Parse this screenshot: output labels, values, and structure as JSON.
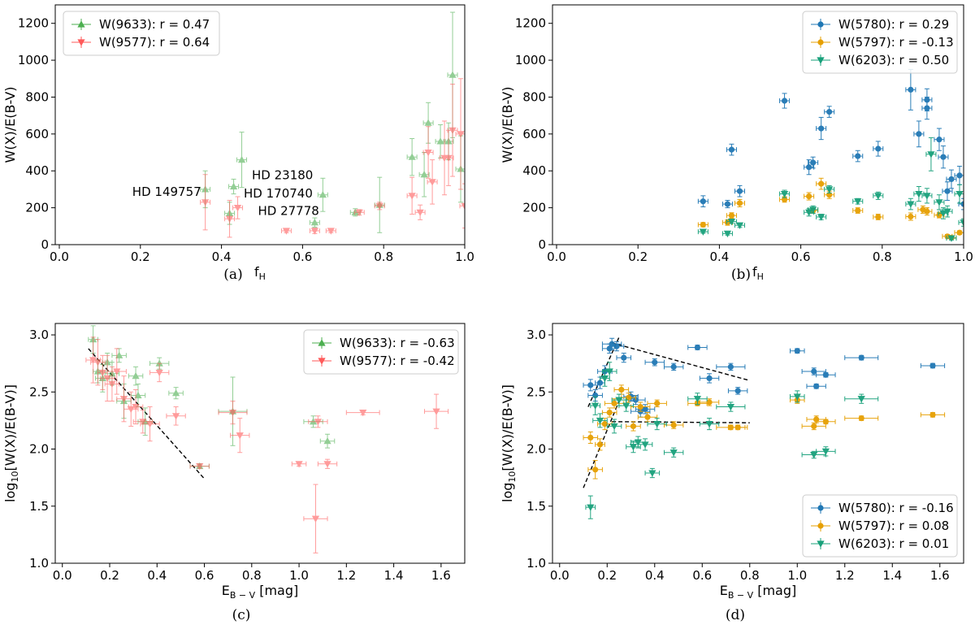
{
  "colors": {
    "green": "#4caf50",
    "red": "#ff5a5a",
    "blue": "#1f77b4",
    "orange": "#e69f00",
    "teal": "#17a07a",
    "axis": "#000000",
    "fitline": "#000000"
  },
  "chart_data": [
    {
      "id": "a",
      "type": "scatter",
      "caption": "(a)",
      "xlabel_main": "f",
      "xlabel_sub": "H",
      "ylabel": "W(X)/E(B-V)",
      "xlim": [
        -0.01,
        1.0
      ],
      "ylim": [
        0,
        1300
      ],
      "xticks": [
        0.0,
        0.2,
        0.4,
        0.6,
        0.8,
        1.0
      ],
      "yticks": [
        0,
        200,
        400,
        600,
        800,
        1000,
        1200
      ],
      "legend_pos": "top-left",
      "annotations": [
        {
          "text": "HD 149757",
          "x": 0.18,
          "y": 265
        },
        {
          "text": "HD 23180",
          "x": 0.475,
          "y": 355
        },
        {
          "text": "HD 170740",
          "x": 0.455,
          "y": 255
        },
        {
          "text": "HD 27778",
          "x": 0.49,
          "y": 160
        }
      ],
      "series": [
        {
          "name": "W(9633): r = 0.47",
          "color_key": "green",
          "marker": "triangle-up",
          "x": [
            0.36,
            0.42,
            0.43,
            0.45,
            0.63,
            0.65,
            0.73,
            0.79,
            0.87,
            0.9,
            0.91,
            0.94,
            0.96,
            0.97,
            0.99
          ],
          "y": [
            300,
            170,
            315,
            460,
            120,
            270,
            175,
            215,
            475,
            380,
            660,
            560,
            560,
            920,
            410
          ],
          "yerr": [
            100,
            60,
            40,
            150,
            25,
            90,
            20,
            150,
            100,
            120,
            110,
            90,
            100,
            340,
            180
          ]
        },
        {
          "name": "W(9577): r = 0.64",
          "color_key": "red",
          "marker": "triangle-down",
          "x": [
            0.36,
            0.42,
            0.44,
            0.56,
            0.63,
            0.67,
            0.74,
            0.79,
            0.87,
            0.89,
            0.91,
            0.92,
            0.95,
            0.96,
            0.97,
            0.99,
            1.0
          ],
          "y": [
            230,
            140,
            200,
            75,
            75,
            75,
            175,
            210,
            265,
            175,
            500,
            340,
            470,
            470,
            620,
            600,
            210
          ],
          "yerr": [
            150,
            100,
            60,
            10,
            15,
            10,
            15,
            20,
            100,
            40,
            140,
            120,
            200,
            150,
            250,
            300,
            120
          ]
        }
      ]
    },
    {
      "id": "b",
      "type": "scatter",
      "caption": "(b)",
      "xlabel_main": "f",
      "xlabel_sub": "H",
      "ylabel": "W(X)/E(B-V)",
      "xlim": [
        -0.01,
        1.0
      ],
      "ylim": [
        0,
        1300
      ],
      "xticks": [
        0.0,
        0.2,
        0.4,
        0.6,
        0.8,
        1.0
      ],
      "yticks": [
        0,
        200,
        400,
        600,
        800,
        1000,
        1200
      ],
      "legend_pos": "top-right",
      "annotations": [],
      "series": [
        {
          "name": "W(5780): r = 0.29",
          "color_key": "blue",
          "marker": "circle",
          "x": [
            0.36,
            0.42,
            0.43,
            0.45,
            0.56,
            0.62,
            0.63,
            0.65,
            0.67,
            0.74,
            0.79,
            0.87,
            0.89,
            0.91,
            0.91,
            0.94,
            0.95,
            0.96,
            0.97,
            0.99,
            1.0
          ],
          "y": [
            235,
            220,
            515,
            290,
            780,
            420,
            445,
            630,
            720,
            480,
            520,
            840,
            600,
            785,
            740,
            570,
            475,
            290,
            355,
            375,
            220
          ],
          "yerr": [
            30,
            20,
            30,
            30,
            40,
            40,
            30,
            60,
            30,
            30,
            40,
            110,
            70,
            60,
            60,
            60,
            60,
            50,
            50,
            50,
            30
          ]
        },
        {
          "name": "W(5797): r = -0.13",
          "color_key": "orange",
          "marker": "circle",
          "x": [
            0.36,
            0.42,
            0.43,
            0.45,
            0.56,
            0.62,
            0.63,
            0.65,
            0.67,
            0.74,
            0.79,
            0.87,
            0.9,
            0.91,
            0.94,
            0.96,
            0.97,
            0.99
          ],
          "y": [
            108,
            120,
            158,
            225,
            245,
            262,
            185,
            330,
            270,
            185,
            150,
            152,
            190,
            180,
            160,
            45,
            38,
            65
          ],
          "yerr": [
            12,
            15,
            15,
            20,
            15,
            20,
            15,
            30,
            20,
            15,
            15,
            20,
            20,
            20,
            15,
            10,
            10,
            10
          ]
        },
        {
          "name": "W(6203): r = 0.50",
          "color_key": "teal",
          "marker": "triangle-down",
          "x": [
            0.36,
            0.42,
            0.43,
            0.45,
            0.56,
            0.62,
            0.63,
            0.65,
            0.67,
            0.74,
            0.79,
            0.87,
            0.89,
            0.91,
            0.92,
            0.94,
            0.95,
            0.96,
            0.97,
            0.99,
            1.0
          ],
          "y": [
            70,
            60,
            125,
            105,
            275,
            175,
            190,
            150,
            300,
            235,
            265,
            220,
            275,
            265,
            490,
            230,
            170,
            180,
            35,
            275,
            120
          ],
          "yerr": [
            8,
            8,
            10,
            12,
            20,
            20,
            20,
            15,
            20,
            15,
            20,
            30,
            40,
            40,
            90,
            40,
            30,
            30,
            10,
            50,
            20
          ]
        }
      ]
    },
    {
      "id": "c",
      "type": "scatter",
      "caption": "(c)",
      "xlabel_main": "E",
      "xlabel_sub": "B − V",
      "xlabel_tail": " [mag]",
      "ylabel": "log10[W(X)/E(B-V)]",
      "xlim": [
        -0.03,
        1.7
      ],
      "ylim": [
        1.0,
        3.1
      ],
      "xticks": [
        0.0,
        0.2,
        0.4,
        0.6,
        0.8,
        1.0,
        1.2,
        1.4,
        1.6
      ],
      "yticks": [
        1.0,
        1.5,
        2.0,
        2.5,
        3.0
      ],
      "legend_pos": "top-right",
      "fit_lines": [
        {
          "x": [
            0.11,
            0.6
          ],
          "y": [
            2.88,
            1.74
          ]
        }
      ],
      "annotations": [],
      "series": [
        {
          "name": "W(9633): r = -0.63",
          "color_key": "green",
          "marker": "triangle-up",
          "x": [
            0.13,
            0.15,
            0.17,
            0.19,
            0.21,
            0.24,
            0.26,
            0.31,
            0.32,
            0.35,
            0.41,
            0.48,
            0.58,
            0.72,
            1.06,
            1.12
          ],
          "y": [
            2.96,
            2.68,
            2.62,
            2.76,
            2.66,
            2.82,
            2.42,
            2.64,
            2.47,
            2.24,
            2.75,
            2.49,
            1.85,
            2.33,
            2.24,
            2.07
          ],
          "yerr": [
            0.12,
            0.1,
            0.12,
            0.08,
            0.1,
            0.06,
            0.15,
            0.08,
            0.1,
            0.12,
            0.05,
            0.05,
            0.02,
            0.3,
            0.05,
            0.06
          ],
          "xerr": [
            0.02,
            0.02,
            0.03,
            0.02,
            0.03,
            0.03,
            0.03,
            0.03,
            0.03,
            0.03,
            0.04,
            0.03,
            0.04,
            0.06,
            0.04,
            0.03
          ]
        },
        {
          "name": "W(9577): r = -0.42",
          "color_key": "red",
          "marker": "triangle-down",
          "x": [
            0.13,
            0.15,
            0.17,
            0.19,
            0.21,
            0.23,
            0.26,
            0.29,
            0.31,
            0.34,
            0.37,
            0.41,
            0.48,
            0.58,
            0.72,
            0.75,
            1.0,
            1.07,
            1.08,
            1.12,
            1.27,
            1.58
          ],
          "y": [
            2.78,
            2.76,
            2.67,
            2.62,
            2.57,
            2.68,
            2.44,
            2.35,
            2.37,
            2.24,
            2.22,
            2.67,
            2.29,
            1.85,
            2.32,
            2.12,
            1.87,
            1.39,
            2.24,
            1.87,
            2.32,
            2.33
          ],
          "yerr": [
            0.2,
            0.2,
            0.15,
            0.2,
            0.15,
            0.2,
            0.2,
            0.15,
            0.15,
            0.1,
            0.15,
            0.08,
            0.08,
            0.02,
            0.1,
            0.15,
            0.02,
            0.3,
            0.05,
            0.04,
            0.02,
            0.15
          ],
          "xerr": [
            0.03,
            0.03,
            0.02,
            0.03,
            0.03,
            0.04,
            0.03,
            0.03,
            0.03,
            0.04,
            0.04,
            0.04,
            0.04,
            0.04,
            0.06,
            0.04,
            0.03,
            0.05,
            0.04,
            0.04,
            0.07,
            0.05
          ]
        }
      ]
    },
    {
      "id": "d",
      "type": "scatter",
      "caption": "(d)",
      "xlabel_main": "E",
      "xlabel_sub": "B − V",
      "xlabel_tail": " [mag]",
      "ylabel": "log10[W(X)/E(B-V)]",
      "xlim": [
        -0.03,
        1.7
      ],
      "ylim": [
        1.0,
        3.1
      ],
      "xticks": [
        0.0,
        0.2,
        0.4,
        0.6,
        0.8,
        1.0,
        1.2,
        1.4,
        1.6
      ],
      "yticks": [
        1.0,
        1.5,
        2.0,
        2.5,
        3.0
      ],
      "legend_pos": "bottom-right",
      "fit_lines": [
        {
          "x": [
            0.12,
            0.25
          ],
          "y": [
            2.37,
            2.98
          ]
        },
        {
          "x": [
            0.22,
            0.8
          ],
          "y": [
            2.93,
            2.6
          ]
        },
        {
          "x": [
            0.1,
            0.25
          ],
          "y": [
            1.66,
            2.42
          ]
        },
        {
          "x": [
            0.22,
            0.8
          ],
          "y": [
            2.24,
            2.23
          ]
        }
      ],
      "annotations": [],
      "series": [
        {
          "name": "W(5780): r = -0.16",
          "color_key": "blue",
          "marker": "circle",
          "x": [
            0.13,
            0.15,
            0.17,
            0.19,
            0.21,
            0.22,
            0.24,
            0.27,
            0.3,
            0.32,
            0.34,
            0.36,
            0.4,
            0.48,
            0.58,
            0.63,
            0.72,
            0.75,
            1.0,
            1.07,
            1.08,
            1.12,
            1.27,
            1.57
          ],
          "y": [
            2.56,
            2.47,
            2.58,
            2.68,
            2.88,
            2.92,
            2.9,
            2.8,
            2.46,
            2.43,
            2.33,
            2.35,
            2.76,
            2.72,
            2.89,
            2.62,
            2.72,
            2.51,
            2.86,
            2.68,
            2.55,
            2.65,
            2.8,
            2.73
          ],
          "yerr": [
            0.05,
            0.05,
            0.05,
            0.05,
            0.04,
            0.05,
            0.04,
            0.04,
            0.04,
            0.04,
            0.05,
            0.04,
            0.03,
            0.03,
            0.02,
            0.04,
            0.03,
            0.03,
            0.02,
            0.03,
            0.02,
            0.02,
            0.02,
            0.02
          ],
          "xerr": [
            0.03,
            0.03,
            0.02,
            0.03,
            0.03,
            0.04,
            0.03,
            0.03,
            0.03,
            0.04,
            0.04,
            0.04,
            0.04,
            0.04,
            0.04,
            0.04,
            0.06,
            0.04,
            0.03,
            0.05,
            0.04,
            0.04,
            0.07,
            0.05
          ]
        },
        {
          "name": "W(5797): r = 0.08",
          "color_key": "orange",
          "marker": "circle",
          "x": [
            0.13,
            0.15,
            0.17,
            0.19,
            0.21,
            0.23,
            0.26,
            0.29,
            0.31,
            0.34,
            0.37,
            0.41,
            0.48,
            0.58,
            0.63,
            0.72,
            0.75,
            1.0,
            1.07,
            1.08,
            1.12,
            1.27,
            1.57
          ],
          "y": [
            2.1,
            1.82,
            2.04,
            2.22,
            2.32,
            2.4,
            2.52,
            2.45,
            2.2,
            2.37,
            2.28,
            2.4,
            2.21,
            2.4,
            2.41,
            2.19,
            2.19,
            2.43,
            2.2,
            2.26,
            2.24,
            2.27,
            2.3
          ],
          "yerr": [
            0.05,
            0.08,
            0.05,
            0.05,
            0.04,
            0.04,
            0.04,
            0.04,
            0.04,
            0.04,
            0.04,
            0.03,
            0.03,
            0.02,
            0.03,
            0.02,
            0.02,
            0.03,
            0.03,
            0.03,
            0.02,
            0.02,
            0.02
          ],
          "xerr": [
            0.03,
            0.03,
            0.02,
            0.03,
            0.03,
            0.04,
            0.03,
            0.03,
            0.03,
            0.04,
            0.04,
            0.04,
            0.04,
            0.04,
            0.04,
            0.06,
            0.04,
            0.03,
            0.05,
            0.04,
            0.04,
            0.07,
            0.05
          ]
        },
        {
          "name": "W(6203): r = 0.01",
          "color_key": "teal",
          "marker": "triangle-down",
          "x": [
            0.13,
            0.15,
            0.17,
            0.19,
            0.21,
            0.23,
            0.25,
            0.28,
            0.31,
            0.33,
            0.36,
            0.39,
            0.41,
            0.48,
            0.58,
            0.63,
            0.72,
            1.0,
            1.07,
            1.12,
            1.27
          ],
          "y": [
            1.49,
            2.38,
            2.25,
            2.62,
            2.68,
            2.2,
            2.43,
            2.38,
            2.02,
            2.06,
            2.04,
            1.79,
            2.22,
            1.97,
            2.44,
            2.22,
            2.37,
            2.46,
            1.95,
            1.98,
            2.44
          ],
          "yerr": [
            0.1,
            0.08,
            0.06,
            0.07,
            0.08,
            0.06,
            0.05,
            0.05,
            0.05,
            0.05,
            0.05,
            0.04,
            0.05,
            0.04,
            0.05,
            0.05,
            0.04,
            0.05,
            0.03,
            0.04,
            0.04
          ],
          "xerr": [
            0.02,
            0.02,
            0.03,
            0.02,
            0.03,
            0.03,
            0.03,
            0.03,
            0.03,
            0.03,
            0.03,
            0.03,
            0.04,
            0.04,
            0.04,
            0.04,
            0.06,
            0.03,
            0.05,
            0.04,
            0.07
          ]
        }
      ]
    }
  ]
}
